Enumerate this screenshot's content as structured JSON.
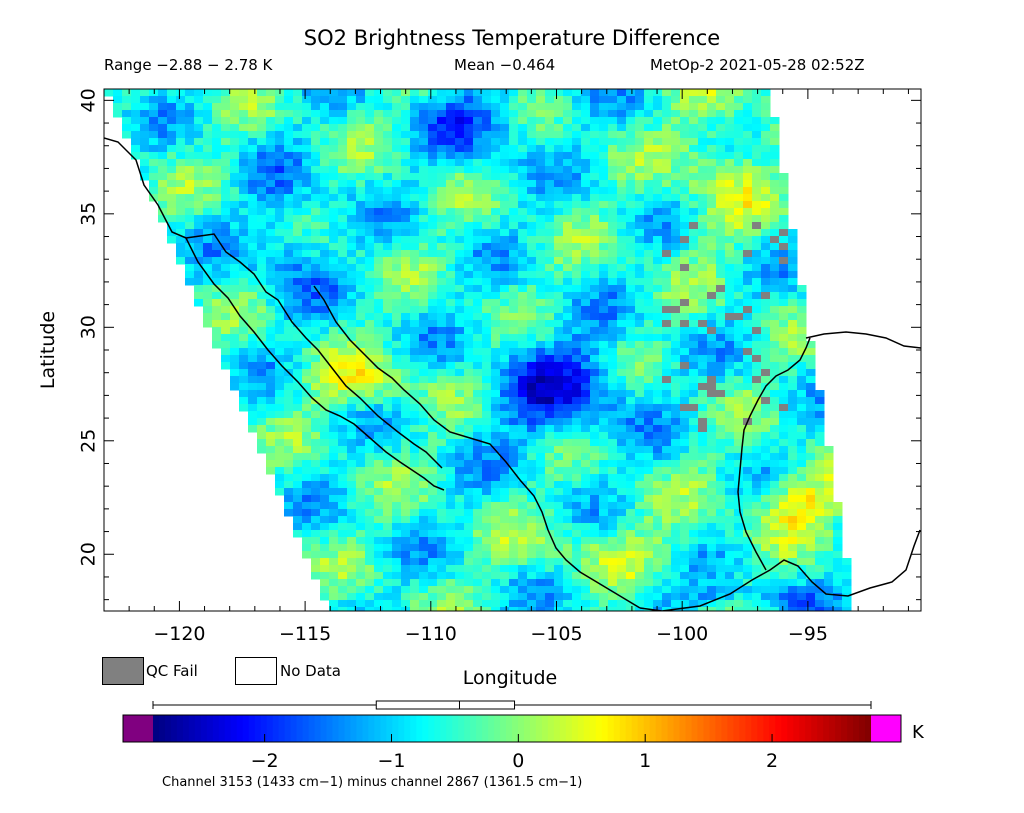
{
  "title": "SO2 Brightness Temperature Difference",
  "range_text": "Range −2.88 − 2.78 K",
  "mean_text": "Mean −0.464",
  "satellite_text": "MetOp-2 2021-05-28 02:52Z",
  "footnote": "Channel 3153 (1433 cm−1) minus channel 2867 (1361.5 cm−1)",
  "legend": {
    "qc_fail": "QC Fail",
    "no_data": "No Data"
  },
  "colors": {
    "qc_fail": "#808080",
    "no_data": "#ffffff",
    "below_range": "#800080",
    "above_range": "#ff00ff"
  },
  "chart_data": {
    "type": "heatmap",
    "title": "SO2 Brightness Temperature Difference",
    "xlabel": "Longitude",
    "ylabel": "Latitude",
    "xlim": [
      -123,
      -90.5
    ],
    "ylim": [
      17.5,
      40.5
    ],
    "x_ticks": [
      -120,
      -115,
      -110,
      -105,
      -100,
      -95
    ],
    "x_tick_labels": [
      "−120",
      "−115",
      "−110",
      "−105",
      "−100",
      "−95"
    ],
    "y_ticks": [
      20,
      25,
      30,
      35,
      40
    ],
    "y_tick_labels": [
      "20",
      "25",
      "30",
      "35",
      "40"
    ],
    "colorbar": {
      "units": "K",
      "range": [
        -2.88,
        2.78
      ],
      "ticks": [
        -2,
        -1,
        0,
        1,
        2
      ],
      "tick_labels": [
        "−2",
        "−1",
        "0",
        "1",
        "2"
      ],
      "colormap": "jet",
      "boxplot": {
        "min": -2.88,
        "q1": -1.12,
        "median": -0.464,
        "q3": -0.03,
        "max": 2.78
      }
    },
    "stats": {
      "range": [
        -2.88,
        2.78
      ],
      "mean": -0.464
    }
  }
}
